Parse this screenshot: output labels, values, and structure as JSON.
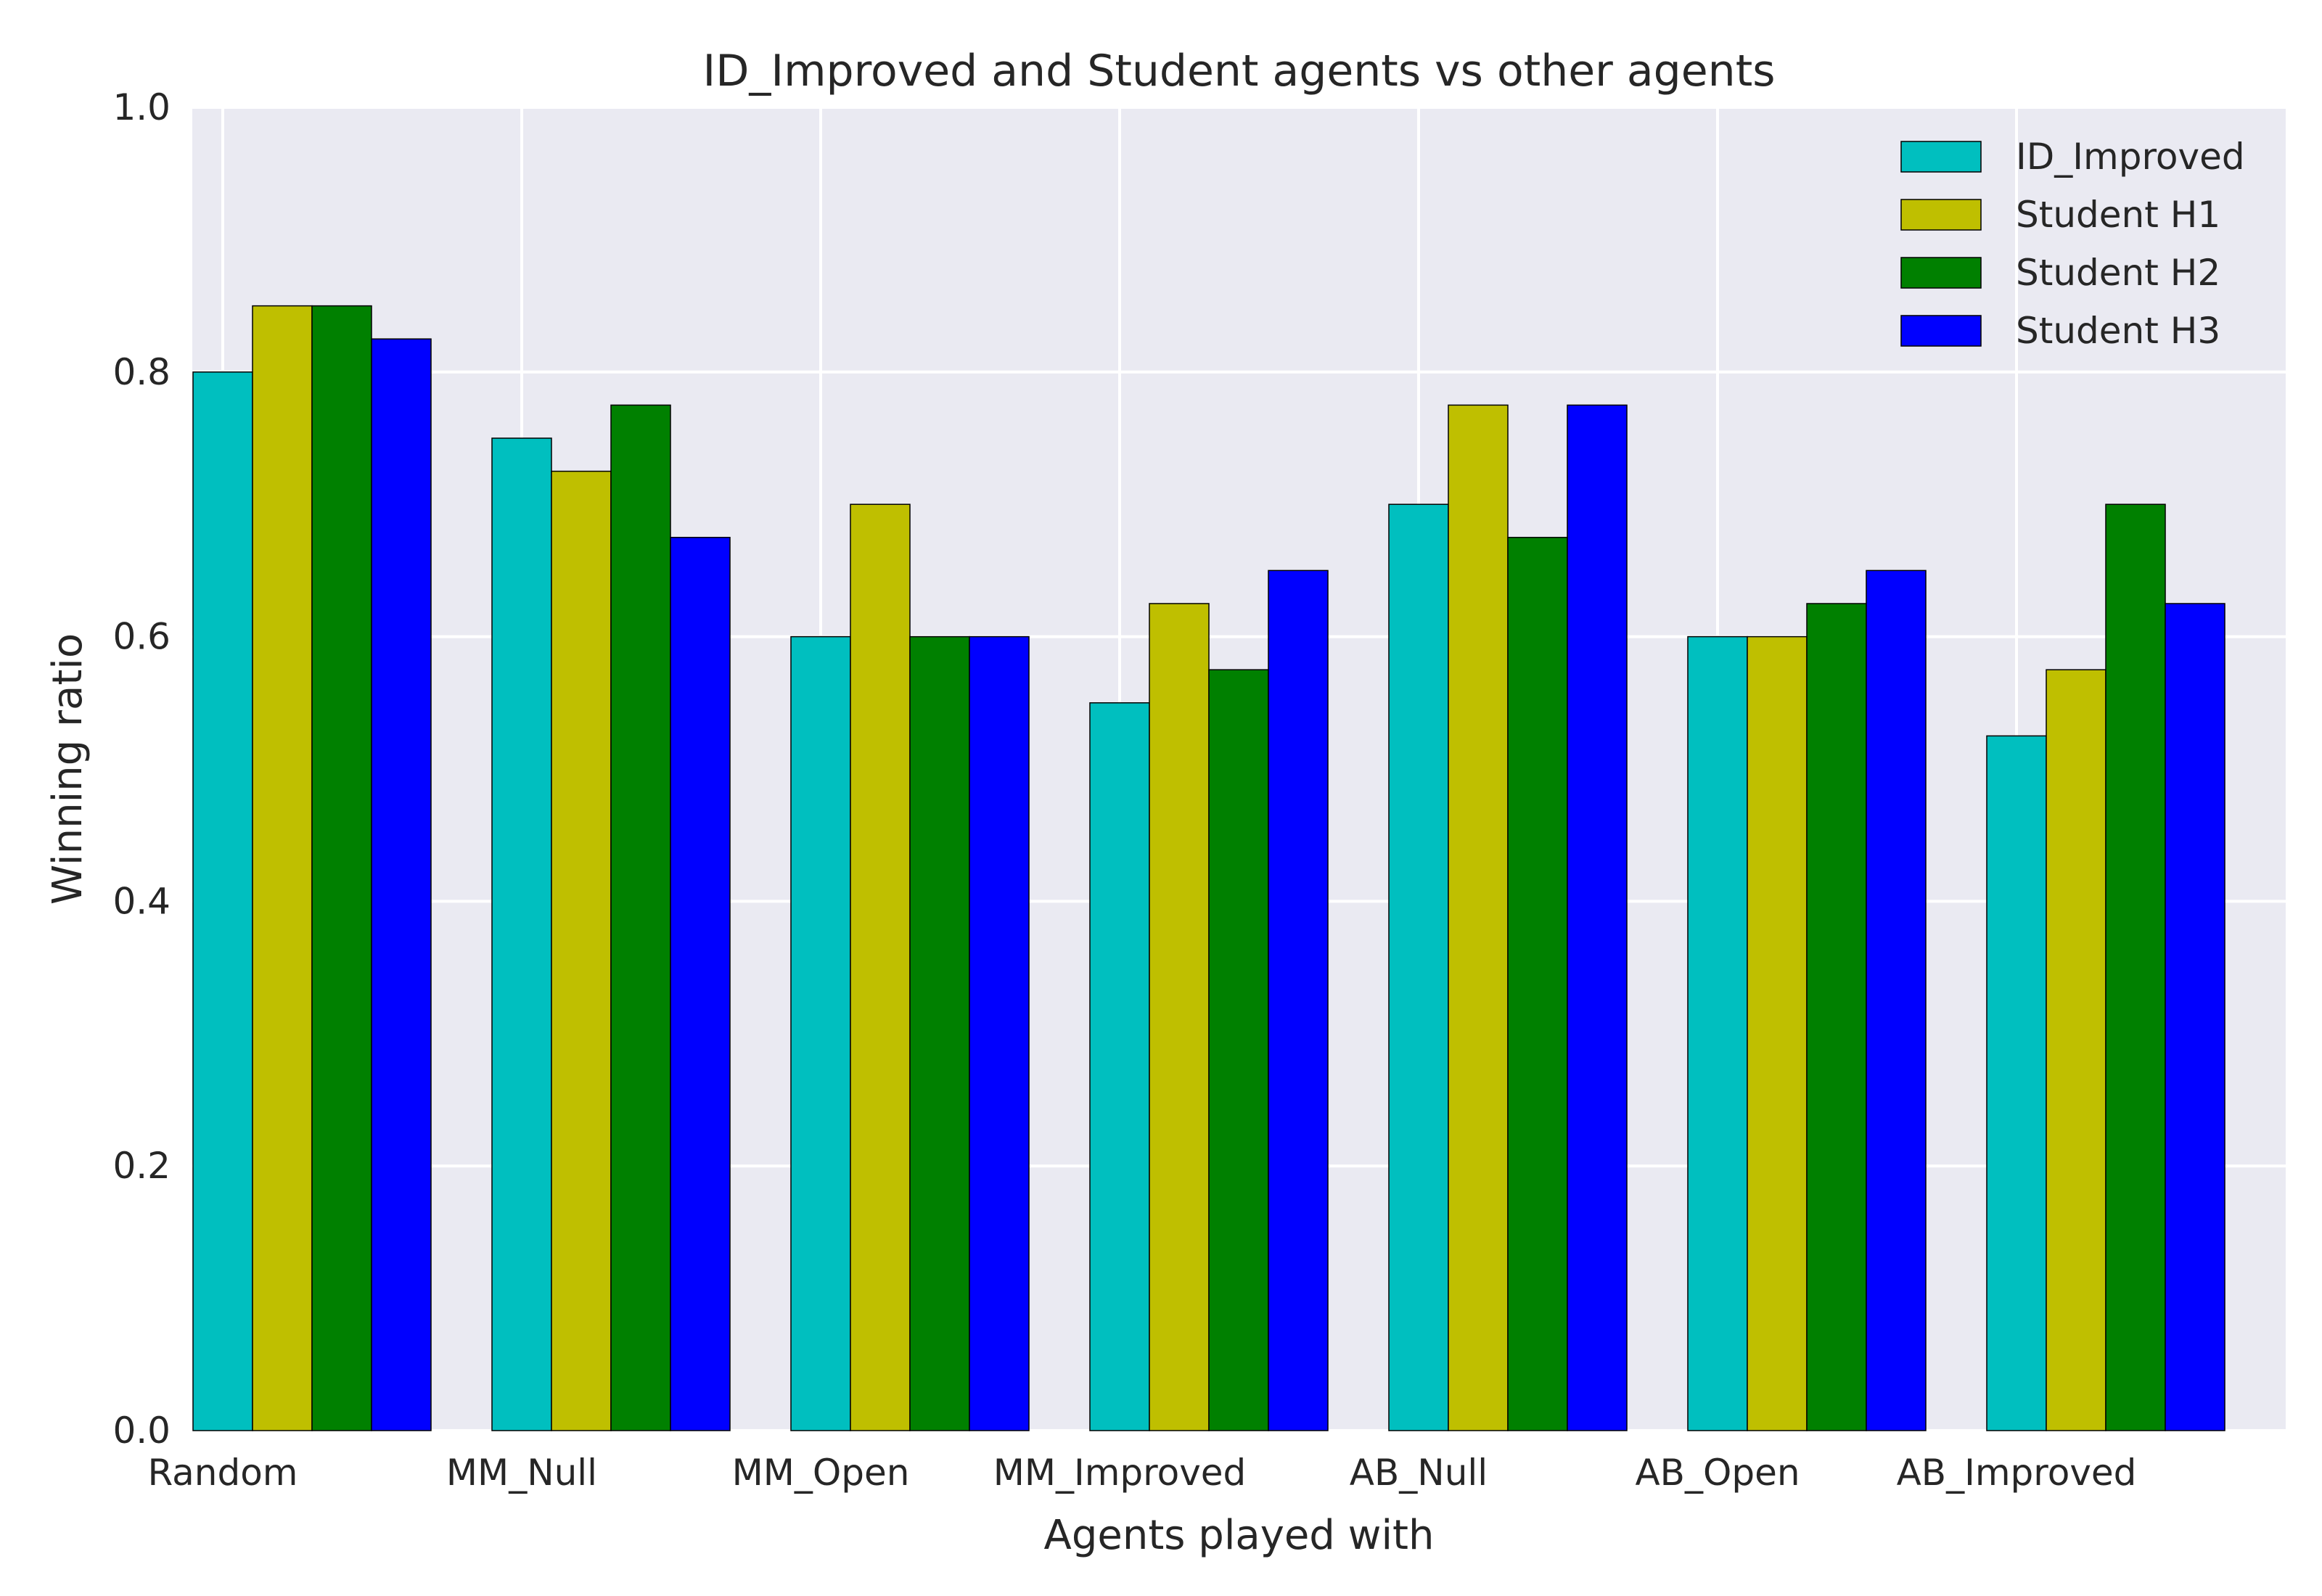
{
  "chart_data": {
    "type": "bar",
    "title": "ID_Improved and Student agents vs other agents",
    "xlabel": "Agents played with",
    "ylabel": "Winning ratio",
    "ylim": [
      0,
      1.0
    ],
    "yticks": [
      0.0,
      0.2,
      0.4,
      0.6,
      0.8,
      1.0
    ],
    "ytick_labels": [
      "0.0",
      "0.2",
      "0.4",
      "0.6",
      "0.8",
      "1.0"
    ],
    "grid": true,
    "legend_position": "top-right",
    "categories": [
      "Random",
      "MM_Null",
      "MM_Open",
      "MM_Improved",
      "AB_Null",
      "AB_Open",
      "AB_Improved"
    ],
    "series": [
      {
        "name": "ID_Improved",
        "color": "#00bfbf",
        "values": [
          0.8,
          0.75,
          0.6,
          0.55,
          0.7,
          0.6,
          0.525
        ]
      },
      {
        "name": "Student H1",
        "color": "#bfbf00",
        "values": [
          0.85,
          0.725,
          0.7,
          0.625,
          0.775,
          0.6,
          0.575
        ]
      },
      {
        "name": "Student H2",
        "color": "#008000",
        "values": [
          0.85,
          0.775,
          0.6,
          0.575,
          0.675,
          0.625,
          0.7
        ]
      },
      {
        "name": "Student H3",
        "color": "#0000ff",
        "values": [
          0.825,
          0.675,
          0.6,
          0.65,
          0.775,
          0.65,
          0.625
        ]
      }
    ],
    "plot_background": "#eaeaf2",
    "grid_color": "#ffffff"
  }
}
